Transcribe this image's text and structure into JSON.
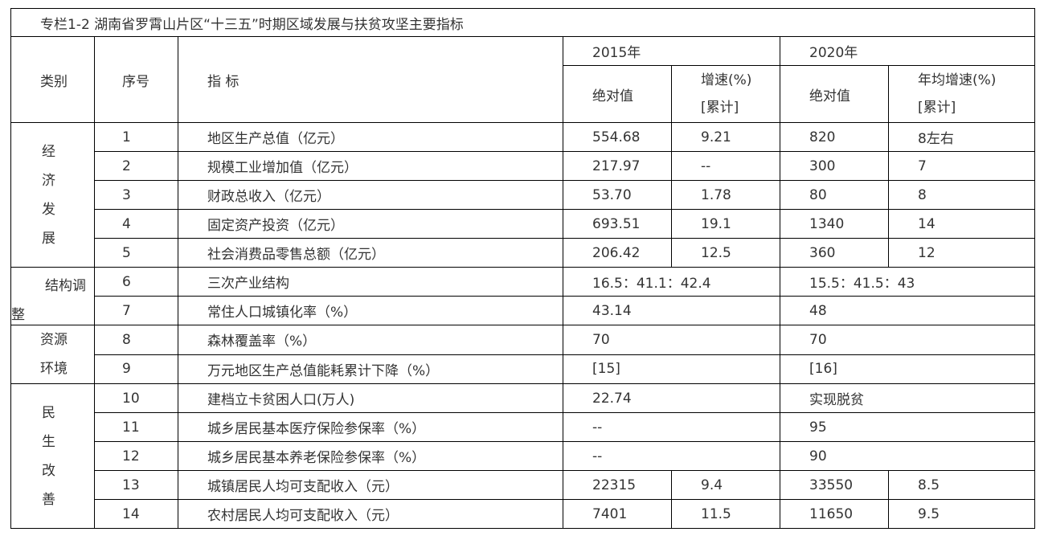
{
  "title": "专栏1-2  湖南省罗霄山片区“十三五”时期区域发展与扶贫攻坚主要指标",
  "headers": {
    "category": "类别",
    "serial": "序号",
    "indicator": "指 标",
    "year2015": "2015年",
    "year2020": "2020年",
    "abs_value": "绝对值",
    "growth_line1": "增速(%)",
    "growth_line2": "[累计]",
    "abs_value_2020": "绝对值",
    "avg_growth_line1": "年均增速(%)",
    "avg_growth_line2": "[累计]"
  },
  "categories": {
    "economy": [
      "经",
      "济",
      "发",
      "展"
    ],
    "structure_line1": "结构调",
    "structure_line2": "整",
    "environment_line1": "资源",
    "environment_line2": "环境",
    "livelihood": [
      "民",
      "生",
      "改",
      "善"
    ]
  },
  "rows": [
    {
      "no": "1",
      "name": "地区生产总值（亿元）",
      "v2015": "554.68",
      "g2015": "9.21",
      "v2020": "820",
      "g2020": "8左右"
    },
    {
      "no": "2",
      "name": "规模工业增加值（亿元）",
      "v2015": "217.97",
      "g2015": "--",
      "v2020": "300",
      "g2020": "7"
    },
    {
      "no": "3",
      "name": "财政总收入（亿元）",
      "v2015": "53.70",
      "g2015": "1.78",
      "v2020": "80",
      "g2020": "8"
    },
    {
      "no": "4",
      "name": "固定资产投资（亿元）",
      "v2015": "693.51",
      "g2015": "19.1",
      "v2020": "1340",
      "g2020": "14"
    },
    {
      "no": "5",
      "name": "社会消费品零售总额（亿元）",
      "v2015": "206.42",
      "g2015": "12.5",
      "v2020": "360",
      "g2020": "12"
    },
    {
      "no": "6",
      "name": "三次产业结构",
      "v2015": "16.5：41.1：42.4",
      "v2020": "15.5：41.5：43"
    },
    {
      "no": "7",
      "name": "常住人口城镇化率（%）",
      "v2015": "43.14",
      "v2020": "48"
    },
    {
      "no": "8",
      "name": "森林覆盖率（%）",
      "v2015": "70",
      "v2020": "70"
    },
    {
      "no": "9",
      "name": "万元地区生产总值能耗累计下降（%）",
      "v2015": "[15]",
      "v2020": "[16]"
    },
    {
      "no": "10",
      "name": "建档立卡贫困人口(万人)",
      "v2015": "22.74",
      "v2020": "实现脱贫"
    },
    {
      "no": "11",
      "name": "城乡居民基本医疗保险参保率（%）",
      "v2015": "--",
      "v2020": "95"
    },
    {
      "no": "12",
      "name": "城乡居民基本养老保险参保率（%）",
      "v2015": "--",
      "v2020": "90"
    },
    {
      "no": "13",
      "name": "城镇居民人均可支配收入（元）",
      "v2015": "22315",
      "g2015": "9.4",
      "v2020": "33550",
      "g2020": "8.5"
    },
    {
      "no": "14",
      "name": "农村居民人均可支配收入（元）",
      "v2015": "7401",
      "g2015": "11.5",
      "v2020": "11650",
      "g2020": "9.5"
    }
  ]
}
